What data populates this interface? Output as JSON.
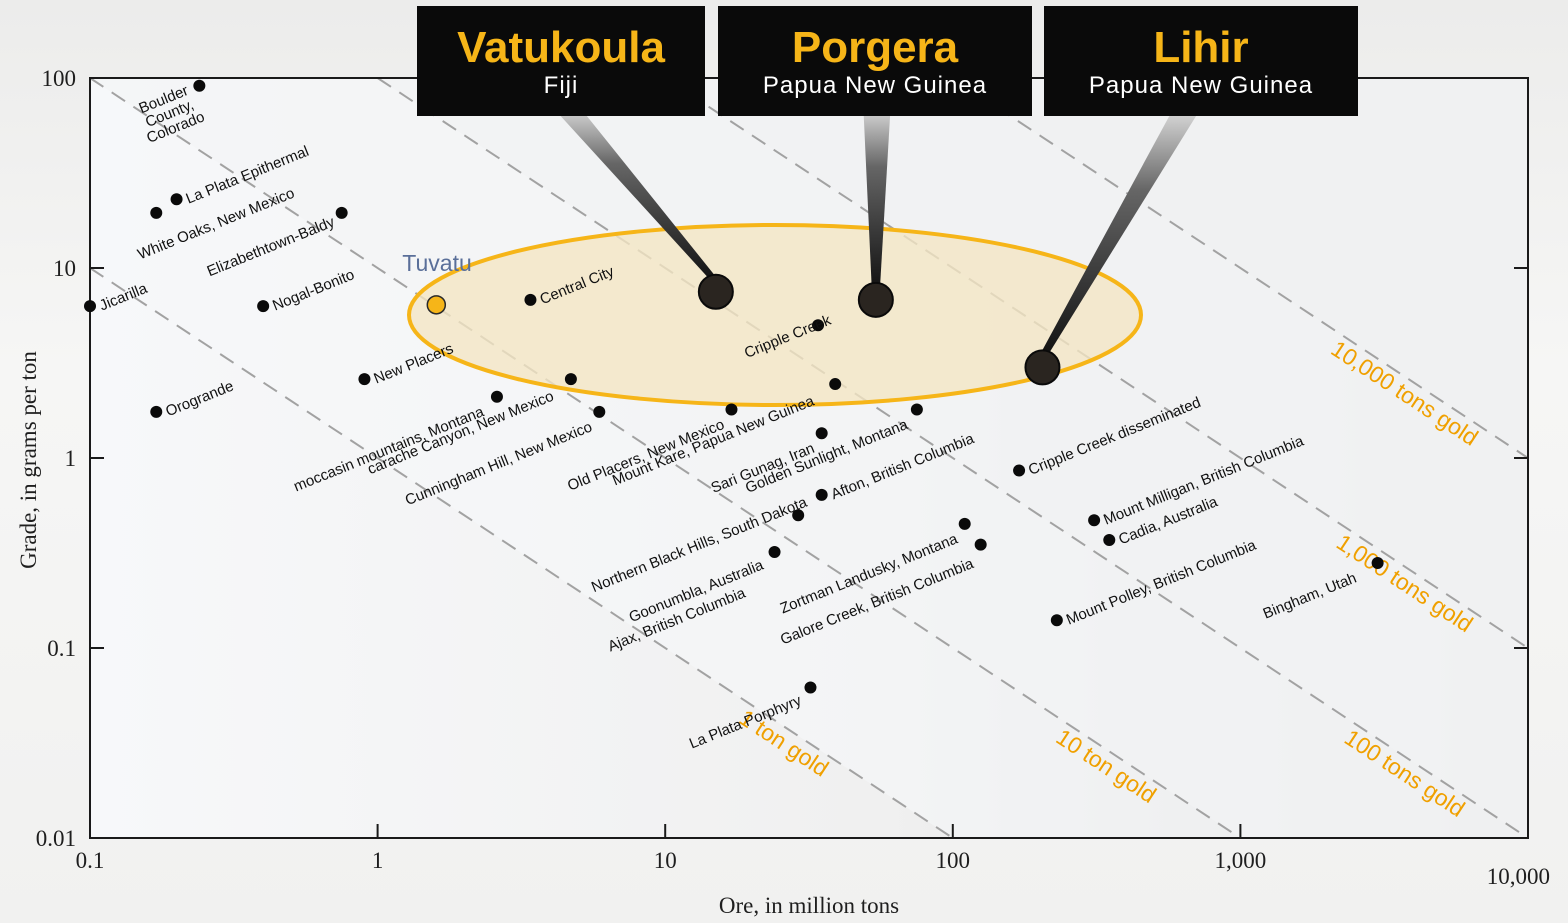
{
  "chart_data": {
    "type": "scatter",
    "xlabel": "Ore, in million tons",
    "ylabel": "Grade, in grams per ton",
    "xscale": "log",
    "yscale": "log",
    "xlim": [
      0.1,
      10000
    ],
    "ylim": [
      0.01,
      100
    ],
    "x_ticks": [
      {
        "value": 0.1,
        "label": "0.1"
      },
      {
        "value": 1,
        "label": "1"
      },
      {
        "value": 10,
        "label": "10"
      },
      {
        "value": 100,
        "label": "100"
      },
      {
        "value": 1000,
        "label": "1,000"
      },
      {
        "value": 10000,
        "label": "10,000"
      }
    ],
    "y_ticks": [
      {
        "value": 100,
        "label": "100"
      },
      {
        "value": 10,
        "label": "10"
      },
      {
        "value": 1,
        "label": "1"
      },
      {
        "value": 0.1,
        "label": "0.1"
      },
      {
        "value": 0.01,
        "label": "0.01"
      }
    ],
    "contours": [
      {
        "tons_gold": 1,
        "label": "1 ton gold"
      },
      {
        "tons_gold": 10,
        "label": "10 ton gold"
      },
      {
        "tons_gold": 100,
        "label": "100 tons gold"
      },
      {
        "tons_gold": 1000,
        "label": "1,000 tons gold"
      },
      {
        "tons_gold": 10000,
        "label": "10,000 tons gold"
      }
    ],
    "deposits": [
      {
        "name": "Boulder County, Colorado",
        "x": 0.24,
        "y": 91
      },
      {
        "name": "La Plata Epithermal",
        "x": 0.2,
        "y": 23
      },
      {
        "name": "White Oaks, New Mexico",
        "x": 0.17,
        "y": 19.5
      },
      {
        "name": "Elizabethtown-Baldy",
        "x": 0.75,
        "y": 19.5
      },
      {
        "name": "Jicarilla",
        "x": 0.1,
        "y": 6.3
      },
      {
        "name": "Nogal-Bonito",
        "x": 0.4,
        "y": 6.3
      },
      {
        "name": "Orogrande",
        "x": 0.17,
        "y": 1.75
      },
      {
        "name": "New Placers",
        "x": 0.9,
        "y": 2.6
      },
      {
        "name": "moccasin mountains, Montana",
        "x": 2.6,
        "y": 2.1
      },
      {
        "name": "carache Canyon, New Mexico",
        "x": 4.7,
        "y": 2.6
      },
      {
        "name": "Cunningham Hill, New Mexico",
        "x": 5.9,
        "y": 1.75
      },
      {
        "name": "Central City",
        "x": 3.4,
        "y": 6.8
      },
      {
        "name": "Cripple Creek",
        "x": 34,
        "y": 5.0
      },
      {
        "name": "Mount Kare, Papua New Guinea",
        "x": 39,
        "y": 2.45
      },
      {
        "name": "Old Placers, New Mexico",
        "x": 17,
        "y": 1.8
      },
      {
        "name": "Golden Sunlight, Montana",
        "x": 75,
        "y": 1.8
      },
      {
        "name": "Sari Gunag, Iran",
        "x": 35,
        "y": 1.35
      },
      {
        "name": "Northern Black Hills, South Dakota",
        "x": 29,
        "y": 0.5
      },
      {
        "name": "Afton, British Columbia",
        "x": 35,
        "y": 0.64
      },
      {
        "name": "Goonumbla, Australia",
        "x": 24,
        "y": 0.32
      },
      {
        "name": "Ajax, British Columbia",
        "x": 24,
        "y": 0.32
      },
      {
        "name": "Zortman Landusky, Montana",
        "x": 110,
        "y": 0.45
      },
      {
        "name": "Galore Creek, British Columbia",
        "x": 125,
        "y": 0.35
      },
      {
        "name": "La Plata Porphyry",
        "x": 32,
        "y": 0.062
      },
      {
        "name": "Cripple Creek disseminated",
        "x": 170,
        "y": 0.86
      },
      {
        "name": "Mount Milligan, British Columbia",
        "x": 310,
        "y": 0.47
      },
      {
        "name": "Cadia, Australia",
        "x": 350,
        "y": 0.37
      },
      {
        "name": "Mount Polley, British Columbia",
        "x": 230,
        "y": 0.14
      },
      {
        "name": "Bingham, Utah",
        "x": 3000,
        "y": 0.28
      }
    ],
    "highlighted": [
      {
        "name": "Tuvatu",
        "x": 1.6,
        "y": 6.4
      },
      {
        "name": "Vatukoula",
        "country": "Fiji",
        "x": 15,
        "y": 7.5
      },
      {
        "name": "Porgera",
        "country": "Papua New Guinea",
        "x": 54,
        "y": 6.8
      },
      {
        "name": "Lihir",
        "country": "Papua New Guinea",
        "x": 205,
        "y": 3.0
      }
    ],
    "colors": {
      "highlight": "#f6b518",
      "contour_label": "#f0a000",
      "ellipse_fill": "#f3e6c3",
      "callout_bg": "#0a0a0a",
      "tuvatu_label": "#5a6f99"
    }
  }
}
